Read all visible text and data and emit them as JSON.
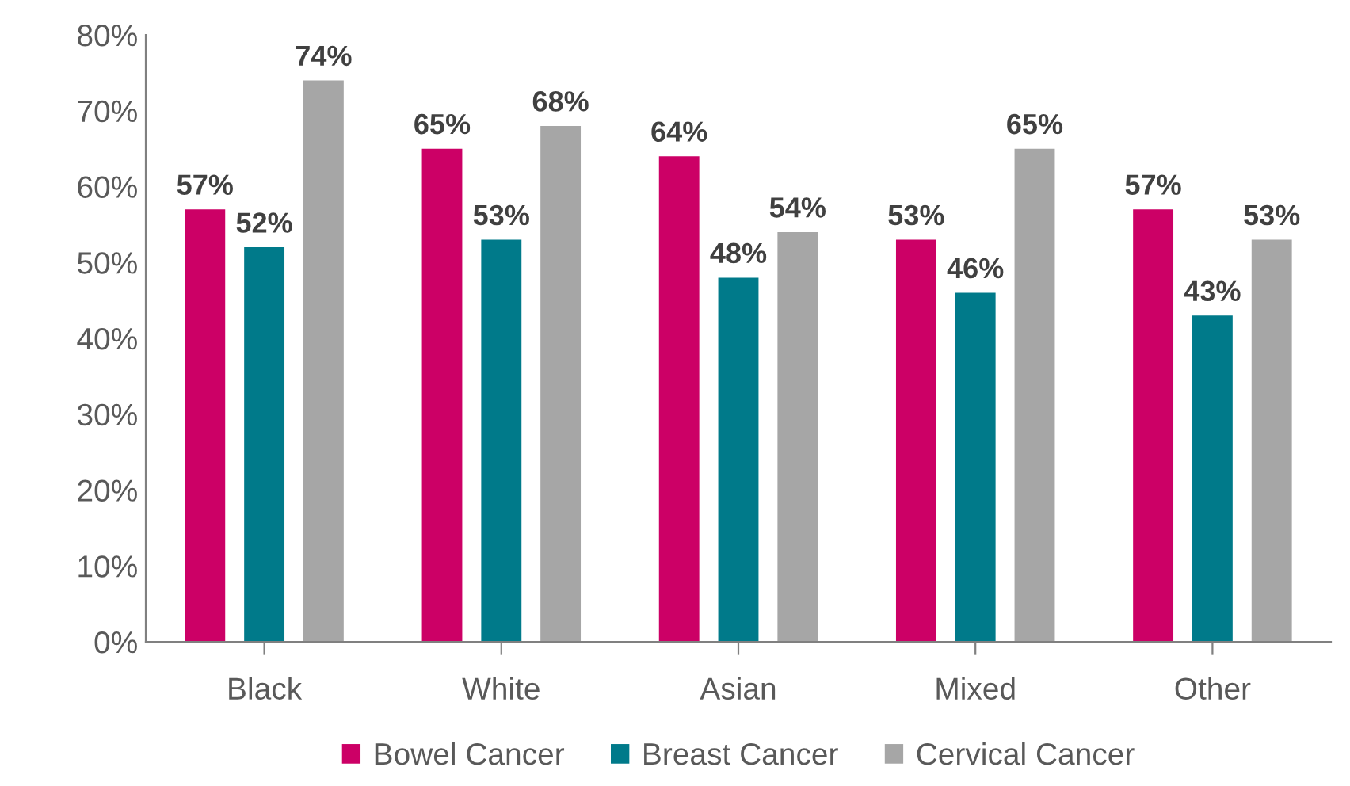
{
  "chart_data": {
    "type": "bar",
    "categories": [
      "Black",
      "White",
      "Asian",
      "Mixed",
      "Other"
    ],
    "series": [
      {
        "name": "Bowel Cancer",
        "color": "#cc0066",
        "values": [
          57,
          65,
          64,
          53,
          57
        ],
        "value_labels": [
          "57%",
          "65%",
          "64%",
          "53%",
          "57%"
        ]
      },
      {
        "name": "Breast Cancer",
        "color": "#007a8a",
        "values": [
          52,
          53,
          48,
          46,
          43
        ],
        "value_labels": [
          "52%",
          "53%",
          "48%",
          "46%",
          "43%"
        ]
      },
      {
        "name": "Cervical Cancer",
        "color": "#a6a6a6",
        "values": [
          74,
          68,
          54,
          65,
          53
        ],
        "value_labels": [
          "74%",
          "68%",
          "54%",
          "65%",
          "53%"
        ]
      }
    ],
    "ylim": [
      0,
      80
    ],
    "yticks": [
      {
        "value": 0,
        "label": "0%"
      },
      {
        "value": 10,
        "label": "10%"
      },
      {
        "value": 20,
        "label": "20%"
      },
      {
        "value": 30,
        "label": "30%"
      },
      {
        "value": 40,
        "label": "40%"
      },
      {
        "value": 50,
        "label": "50%"
      },
      {
        "value": 60,
        "label": "60%"
      },
      {
        "value": 70,
        "label": "70%"
      },
      {
        "value": 80,
        "label": "80%"
      }
    ],
    "grid": false,
    "legend": "bottom"
  }
}
